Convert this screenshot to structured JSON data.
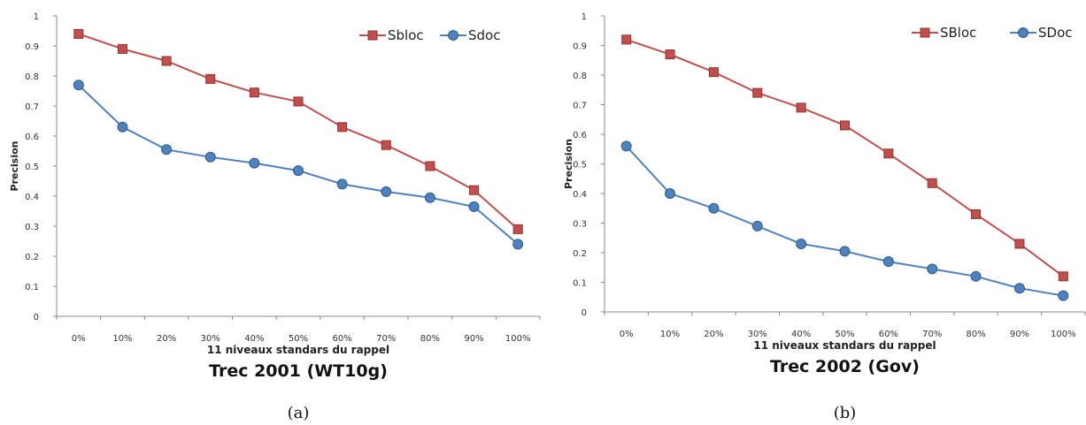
{
  "colors": {
    "sbloc": "#c0504d",
    "sdoc": "#4f81bd"
  },
  "chart_data": [
    {
      "type": "line",
      "title": "Trec 2001 (WT10g)",
      "caption": "(a)",
      "xlabel": "11 niveaux standars du rappel",
      "ylabel": "Precision",
      "categories": [
        "0%",
        "10%",
        "20%",
        "30%",
        "40%",
        "50%",
        "60%",
        "70%",
        "80%",
        "90%",
        "100%"
      ],
      "ylim": [
        0,
        1
      ],
      "yticks": [
        "0",
        "0.1",
        "0.2",
        "0.3",
        "0.4",
        "0.5",
        "0.6",
        "0.7",
        "0.8",
        "0.9",
        "1"
      ],
      "legend": "top-right",
      "grid": false,
      "series": [
        {
          "name": "Sbloc",
          "values": [
            0.94,
            0.89,
            0.85,
            0.79,
            0.745,
            0.715,
            0.63,
            0.57,
            0.5,
            0.42,
            0.29
          ]
        },
        {
          "name": "Sdoc",
          "values": [
            0.77,
            0.63,
            0.555,
            0.53,
            0.51,
            0.485,
            0.44,
            0.415,
            0.395,
            0.365,
            0.24
          ]
        }
      ]
    },
    {
      "type": "line",
      "title": "Trec 2002 (Gov)",
      "caption": "(b)",
      "xlabel": "11 niveaux standars du rappel",
      "ylabel": "Precision",
      "categories": [
        "0%",
        "10%",
        "20%",
        "30%",
        "40%",
        "50%",
        "60%",
        "70%",
        "80%",
        "90%",
        "100%"
      ],
      "ylim": [
        0,
        1
      ],
      "yticks": [
        "0",
        "0.1",
        "0.2",
        "0.3",
        "0.4",
        "0.5",
        "0.6",
        "0.7",
        "0.8",
        "0.9",
        "1"
      ],
      "legend": "top-right",
      "grid": false,
      "series": [
        {
          "name": "SBloc",
          "values": [
            0.92,
            0.87,
            0.81,
            0.74,
            0.69,
            0.63,
            0.535,
            0.435,
            0.33,
            0.23,
            0.12
          ]
        },
        {
          "name": "SDoc",
          "values": [
            0.56,
            0.4,
            0.35,
            0.29,
            0.23,
            0.205,
            0.17,
            0.145,
            0.12,
            0.08,
            0.055
          ]
        }
      ]
    }
  ]
}
